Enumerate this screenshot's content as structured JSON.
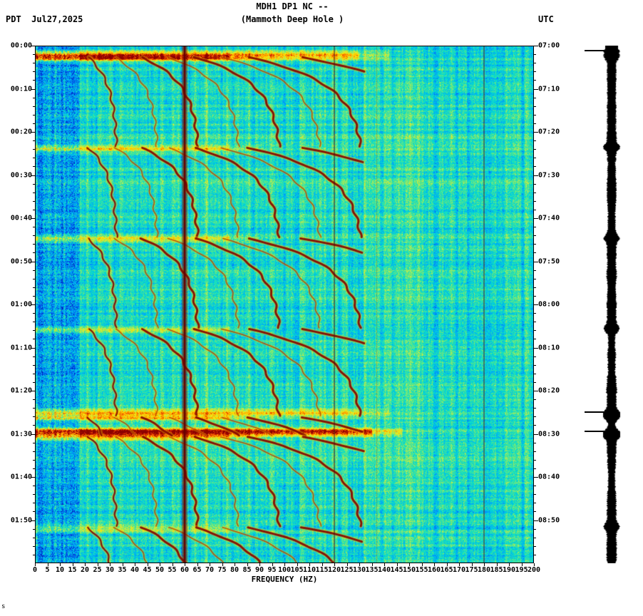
{
  "header": {
    "title": "MDH1 DP1 NC --",
    "subtitle": "(Mammoth Deep Hole )",
    "left_tz": "PDT",
    "date": "Jul27,2025",
    "right_tz": "UTC"
  },
  "axes": {
    "left_time_labels": [
      "00:00",
      "00:10",
      "00:20",
      "00:30",
      "00:40",
      "00:50",
      "01:00",
      "01:10",
      "01:20",
      "01:30",
      "01:40",
      "01:50"
    ],
    "right_time_labels": [
      "07:00",
      "07:10",
      "07:20",
      "07:30",
      "07:40",
      "07:50",
      "08:00",
      "08:10",
      "08:20",
      "08:30",
      "08:40",
      "08:50"
    ],
    "freq_tick_labels": [
      "0",
      "5",
      "10",
      "15",
      "20",
      "25",
      "30",
      "35",
      "40",
      "45",
      "50",
      "55",
      "60",
      "65",
      "70",
      "75",
      "80",
      "85",
      "90",
      "95",
      "100",
      "105",
      "110",
      "115",
      "120",
      "125",
      "130",
      "135",
      "140",
      "145",
      "150",
      "155",
      "160",
      "165",
      "170",
      "175",
      "180",
      "185",
      "190",
      "195",
      "200"
    ],
    "x_axis_label": "FREQUENCY (HZ)",
    "time_span_minutes": 120,
    "major_tick_minutes": 10,
    "minor_tick_minutes": 2,
    "freq_min": 0,
    "freq_max": 200,
    "freq_tick_step": 5
  },
  "chart_data": {
    "type": "heatmap",
    "title": "MDH1 DP1 NC -- (Mammoth Deep Hole )",
    "xlabel": "FREQUENCY (HZ)",
    "x_range_hz": [
      0,
      200
    ],
    "time_start_pdt": "00:00",
    "time_end_pdt": "02:00",
    "time_start_utc": "07:00",
    "time_end_utc": "09:00",
    "date": "Jul27,2025",
    "colormap": "jet",
    "powerline_harmonics_hz": [
      60,
      120,
      180
    ],
    "faint_vertical_lines_hz": [
      137
    ],
    "tremor_chains": {
      "start_minutes": [
        2.5,
        23.5,
        44.5,
        65.5,
        86,
        90.5,
        111.5
      ],
      "duration_minutes": 21,
      "fundamental_start_hz": 21,
      "fundamental_rise_hz": 12,
      "rise_tau_minutes": 6,
      "harmonics": [
        1,
        1.5,
        2,
        2.5,
        3,
        3.5,
        4,
        5
      ],
      "max_freq_hz": 132
    },
    "broadband_events": [
      {
        "minute": 2.2,
        "strength": 0.5,
        "max_freq_hz": 130
      },
      {
        "minute": 85.0,
        "strength": 0.32,
        "max_freq_hz": 130
      },
      {
        "minute": 89.5,
        "strength": 0.62,
        "max_freq_hz": 135
      }
    ],
    "colors": {
      "powerline_60hz": "#640000",
      "arc_core": "#87120a",
      "arc_halo": "#ffd700",
      "background_cyan": "#00dcd2",
      "background_blue": "#00a0ff",
      "amplitude_strip": "#000000",
      "text": "#000000"
    }
  },
  "amplitude_bar": {
    "event_marker_minutes": [
      1.1,
      85.0,
      89.5
    ]
  },
  "footer": {
    "corner_mark": "s"
  }
}
